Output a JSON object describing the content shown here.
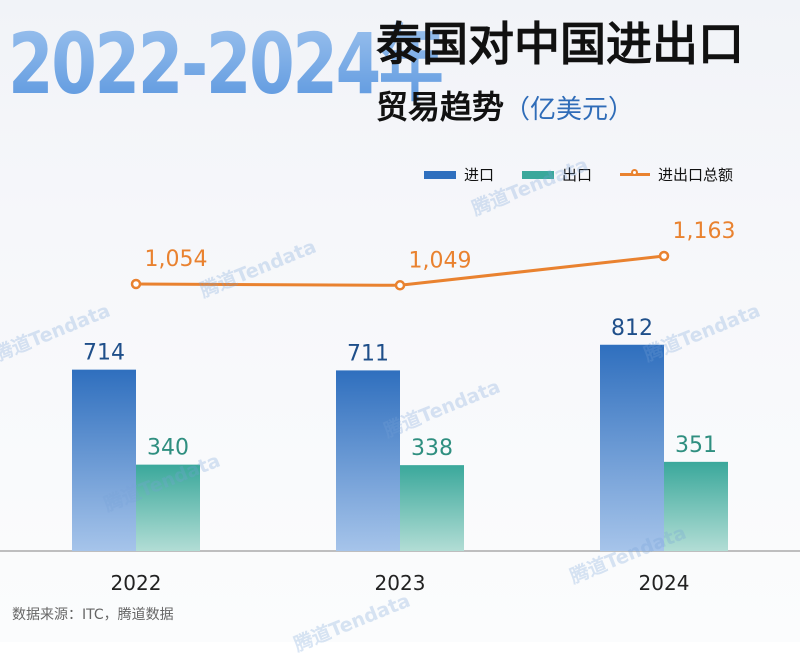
{
  "title": {
    "year_range": "2022-2024年",
    "main": "泰国对中国进出口",
    "sub": "贸易趋势",
    "unit": "（亿美元）"
  },
  "legend": {
    "import_label": "进口",
    "export_label": "出口",
    "total_label": "进出口总额"
  },
  "colors": {
    "import": "#2f6fbe",
    "export": "#3aa89b",
    "total": "#e9822f",
    "import_value_text": "#1f4f8a",
    "export_value_text": "#2f8f80"
  },
  "watermark": "腾道Tendata",
  "source": "数据来源：ITC，腾道数据",
  "chart_data": {
    "type": "bar",
    "categories": [
      "2022",
      "2023",
      "2024"
    ],
    "series": [
      {
        "name": "进口",
        "type": "bar",
        "values": [
          714,
          711,
          812
        ],
        "labels": [
          "714",
          "711",
          "812"
        ]
      },
      {
        "name": "出口",
        "type": "bar",
        "values": [
          340,
          338,
          351
        ],
        "labels": [
          "340",
          "338",
          "351"
        ]
      },
      {
        "name": "进出口总额",
        "type": "line",
        "values": [
          1054,
          1049,
          1163
        ],
        "labels": [
          "1,054",
          "1,049",
          "1,163"
        ]
      }
    ],
    "ylim": [
      0,
      1000
    ],
    "line_ylim": [
      1054,
      1163
    ],
    "grid": false,
    "legend_position": "top-right"
  }
}
